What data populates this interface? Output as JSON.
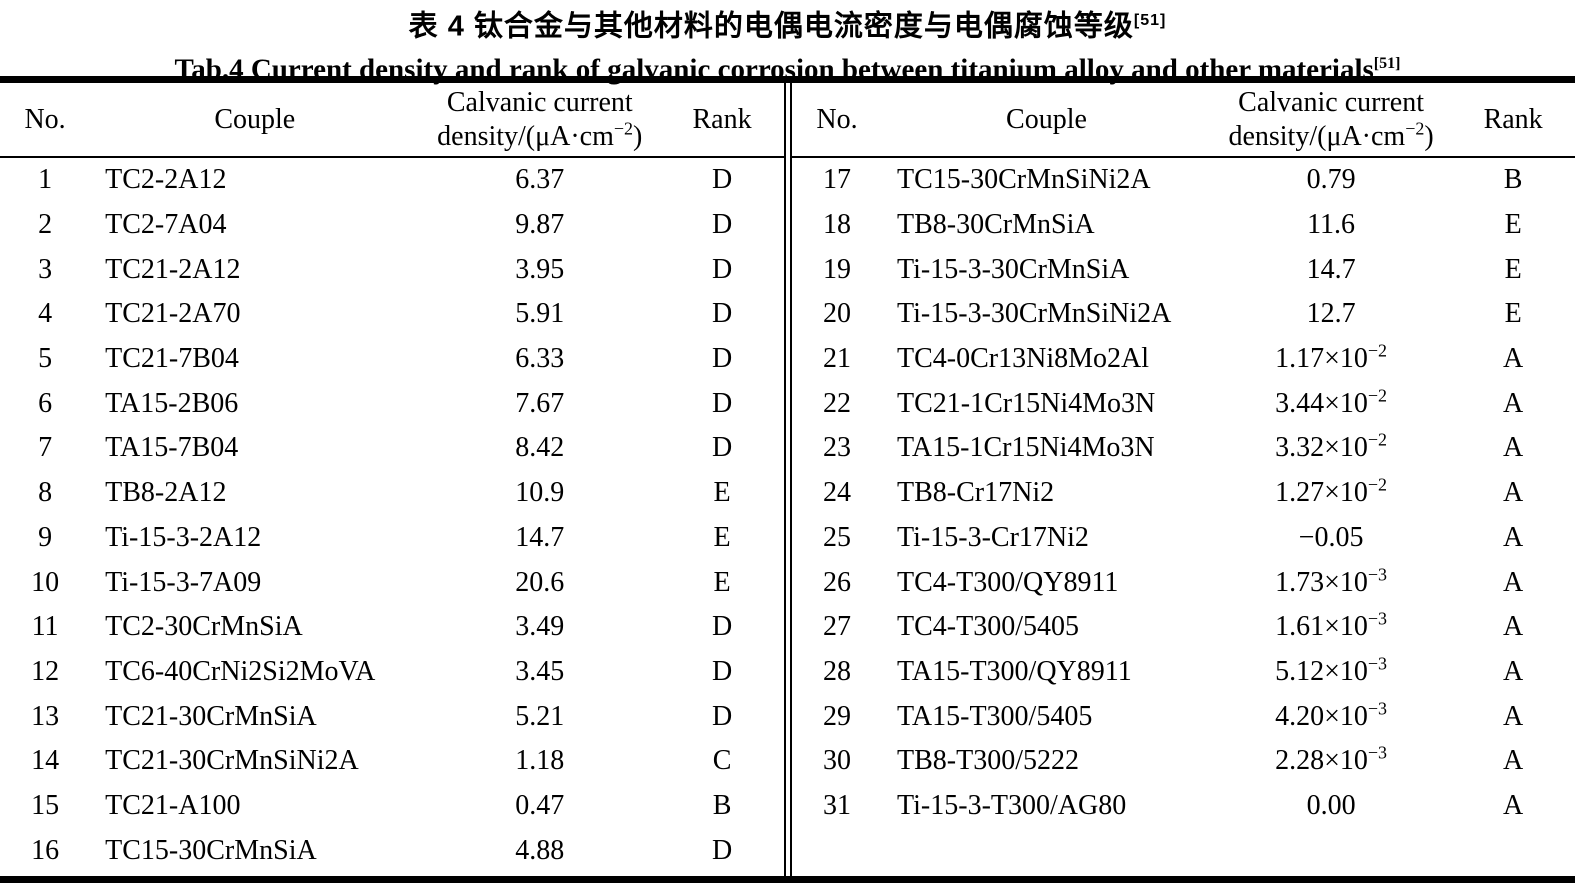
{
  "page": {
    "title_zh": "表 4  钛合金与其他材料的电偶电流密度与电偶腐蚀等级",
    "title_zh_ref": "[51]",
    "title_en": "Tab.4 Current density and rank of galvanic corrosion between titanium alloy and other materials",
    "title_en_ref": "[51]"
  },
  "table": {
    "headers": {
      "no": "No.",
      "couple": "Couple",
      "density_line1": "Calvanic current",
      "density_line2_base": "density/(μA·cm",
      "density_exp": "−2",
      "density_close": ")",
      "rank": "Rank"
    },
    "left_rows": [
      {
        "no": "1",
        "couple": "TC2-2A12",
        "density_base": "6.37",
        "density_exp": "",
        "rank": "D"
      },
      {
        "no": "2",
        "couple": "TC2-7A04",
        "density_base": "9.87",
        "density_exp": "",
        "rank": "D"
      },
      {
        "no": "3",
        "couple": "TC21-2A12",
        "density_base": "3.95",
        "density_exp": "",
        "rank": "D"
      },
      {
        "no": "4",
        "couple": "TC21-2A70",
        "density_base": "5.91",
        "density_exp": "",
        "rank": "D"
      },
      {
        "no": "5",
        "couple": "TC21-7B04",
        "density_base": "6.33",
        "density_exp": "",
        "rank": "D"
      },
      {
        "no": "6",
        "couple": "TA15-2B06",
        "density_base": "7.67",
        "density_exp": "",
        "rank": "D"
      },
      {
        "no": "7",
        "couple": "TA15-7B04",
        "density_base": "8.42",
        "density_exp": "",
        "rank": "D"
      },
      {
        "no": "8",
        "couple": "TB8-2A12",
        "density_base": "10.9",
        "density_exp": "",
        "rank": "E"
      },
      {
        "no": "9",
        "couple": "Ti-15-3-2A12",
        "density_base": "14.7",
        "density_exp": "",
        "rank": "E"
      },
      {
        "no": "10",
        "couple": "Ti-15-3-7A09",
        "density_base": "20.6",
        "density_exp": "",
        "rank": "E"
      },
      {
        "no": "11",
        "couple": "TC2-30CrMnSiA",
        "density_base": "3.49",
        "density_exp": "",
        "rank": "D"
      },
      {
        "no": "12",
        "couple": "TC6-40CrNi2Si2MoVA",
        "density_base": "3.45",
        "density_exp": "",
        "rank": "D"
      },
      {
        "no": "13",
        "couple": "TC21-30CrMnSiA",
        "density_base": "5.21",
        "density_exp": "",
        "rank": "D"
      },
      {
        "no": "14",
        "couple": "TC21-30CrMnSiNi2A",
        "density_base": "1.18",
        "density_exp": "",
        "rank": "C"
      },
      {
        "no": "15",
        "couple": "TC21-A100",
        "density_base": "0.47",
        "density_exp": "",
        "rank": "B"
      },
      {
        "no": "16",
        "couple": "TC15-30CrMnSiA",
        "density_base": "4.88",
        "density_exp": "",
        "rank": "D"
      }
    ],
    "right_rows": [
      {
        "no": "17",
        "couple": "TC15-30CrMnSiNi2A",
        "density_base": "0.79",
        "density_exp": "",
        "rank": "B"
      },
      {
        "no": "18",
        "couple": "TB8-30CrMnSiA",
        "density_base": "11.6",
        "density_exp": "",
        "rank": "E"
      },
      {
        "no": "19",
        "couple": "Ti-15-3-30CrMnSiA",
        "density_base": "14.7",
        "density_exp": "",
        "rank": "E"
      },
      {
        "no": "20",
        "couple": "Ti-15-3-30CrMnSiNi2A",
        "density_base": "12.7",
        "density_exp": "",
        "rank": "E"
      },
      {
        "no": "21",
        "couple": "TC4-0Cr13Ni8Mo2Al",
        "density_base": "1.17×10",
        "density_exp": "−2",
        "rank": "A"
      },
      {
        "no": "22",
        "couple": "TC21-1Cr15Ni4Mo3N",
        "density_base": "3.44×10",
        "density_exp": "−2",
        "rank": "A"
      },
      {
        "no": "23",
        "couple": "TA15-1Cr15Ni4Mo3N",
        "density_base": "3.32×10",
        "density_exp": "−2",
        "rank": "A"
      },
      {
        "no": "24",
        "couple": "TB8-Cr17Ni2",
        "density_base": "1.27×10",
        "density_exp": "−2",
        "rank": "A"
      },
      {
        "no": "25",
        "couple": "Ti-15-3-Cr17Ni2",
        "density_base": "−0.05",
        "density_exp": "",
        "rank": "A"
      },
      {
        "no": "26",
        "couple": "TC4-T300/QY8911",
        "density_base": "1.73×10",
        "density_exp": "−3",
        "rank": "A"
      },
      {
        "no": "27",
        "couple": "TC4-T300/5405",
        "density_base": "1.61×10",
        "density_exp": "−3",
        "rank": "A"
      },
      {
        "no": "28",
        "couple": "TA15-T300/QY8911",
        "density_base": "5.12×10",
        "density_exp": "−3",
        "rank": "A"
      },
      {
        "no": "29",
        "couple": "TA15-T300/5405",
        "density_base": "4.20×10",
        "density_exp": "−3",
        "rank": "A"
      },
      {
        "no": "30",
        "couple": "TB8-T300/5222",
        "density_base": "2.28×10",
        "density_exp": "−3",
        "rank": "A"
      },
      {
        "no": "31",
        "couple": "Ti-15-3-T300/AG80",
        "density_base": "0.00",
        "density_exp": "",
        "rank": "A"
      }
    ]
  }
}
